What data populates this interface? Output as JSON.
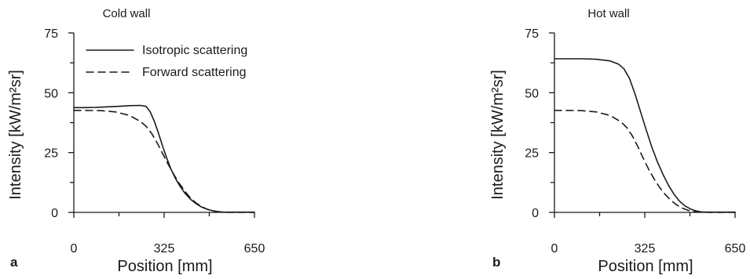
{
  "chart_data": [
    {
      "type": "line",
      "panel": "a",
      "title": "Cold wall",
      "xlabel": "Position [mm]",
      "ylabel": "Intensity [kW/m²sr]",
      "xlim": [
        0,
        650
      ],
      "ylim": [
        0,
        75
      ],
      "xticks": [
        0,
        325,
        650
      ],
      "yticks": [
        0,
        25,
        50,
        75
      ],
      "xticks_minor": [
        162.5,
        487.5
      ],
      "yticks_minor": [
        12.5,
        37.5,
        62.5
      ],
      "grid": false,
      "legend": {
        "placement": "top-left"
      },
      "series": [
        {
          "name": "Isotropic scattering",
          "style": "solid",
          "color": "#1a1a1a",
          "x": [
            0,
            40,
            80,
            120,
            160,
            200,
            240,
            260,
            275,
            290,
            305,
            320,
            335,
            350,
            365,
            380,
            400,
            420,
            440,
            460,
            480,
            500,
            520,
            540,
            560,
            580,
            600,
            620,
            650
          ],
          "y": [
            43.8,
            43.8,
            43.9,
            44.1,
            44.3,
            44.6,
            44.7,
            44.3,
            42.0,
            38.0,
            33.0,
            27.5,
            22.5,
            18.0,
            14.3,
            11.3,
            8.0,
            5.5,
            3.6,
            2.2,
            1.3,
            0.7,
            0.3,
            0.1,
            0.1,
            0.1,
            0.1,
            0.1,
            0.1
          ]
        },
        {
          "name": "Forward scattering",
          "style": "dashed",
          "color": "#1a1a1a",
          "x": [
            0,
            50,
            100,
            150,
            200,
            240,
            260,
            280,
            300,
            320,
            340,
            360,
            380,
            400,
            420,
            440,
            460,
            480,
            500,
            520,
            540,
            560,
            600,
            650
          ],
          "y": [
            42.6,
            42.6,
            42.5,
            42.0,
            40.5,
            38.0,
            36.0,
            33.0,
            29.0,
            24.5,
            20.0,
            15.8,
            12.0,
            8.8,
            6.0,
            3.9,
            2.4,
            1.3,
            0.6,
            0.2,
            0.1,
            0.0,
            0.0,
            0.0
          ]
        }
      ]
    },
    {
      "type": "line",
      "panel": "b",
      "title": "Hot wall",
      "xlabel": "Position [mm]",
      "ylabel": "Intensity [kW/m²sr]",
      "xlim": [
        0,
        650
      ],
      "ylim": [
        0,
        75
      ],
      "xticks": [
        0,
        325,
        650
      ],
      "yticks": [
        0,
        25,
        50,
        75
      ],
      "xticks_minor": [
        162.5,
        487.5
      ],
      "yticks_minor": [
        12.5,
        37.5,
        62.5
      ],
      "grid": false,
      "series": [
        {
          "name": "Isotropic scattering",
          "style": "solid",
          "color": "#1a1a1a",
          "x": [
            0,
            50,
            100,
            150,
            200,
            230,
            250,
            270,
            290,
            310,
            330,
            350,
            370,
            390,
            410,
            430,
            450,
            470,
            490,
            510,
            530,
            560,
            600,
            650
          ],
          "y": [
            64.2,
            64.2,
            64.2,
            64.0,
            63.3,
            62.0,
            60.0,
            56.0,
            49.5,
            42.0,
            34.5,
            27.5,
            21.3,
            16.0,
            11.4,
            7.6,
            4.7,
            2.7,
            1.4,
            0.6,
            0.2,
            0.1,
            0.1,
            0.1
          ]
        },
        {
          "name": "Forward scattering",
          "style": "dashed",
          "color": "#1a1a1a",
          "x": [
            0,
            50,
            100,
            150,
            200,
            240,
            260,
            280,
            300,
            320,
            340,
            360,
            380,
            400,
            420,
            440,
            460,
            480,
            500,
            520,
            540,
            560,
            600,
            650
          ],
          "y": [
            42.6,
            42.6,
            42.5,
            42.0,
            40.5,
            37.8,
            35.5,
            32.0,
            27.5,
            22.5,
            17.8,
            13.7,
            10.2,
            7.3,
            4.9,
            3.1,
            1.8,
            0.9,
            0.4,
            0.1,
            0.1,
            0.0,
            0.0,
            0.0
          ]
        }
      ]
    }
  ]
}
